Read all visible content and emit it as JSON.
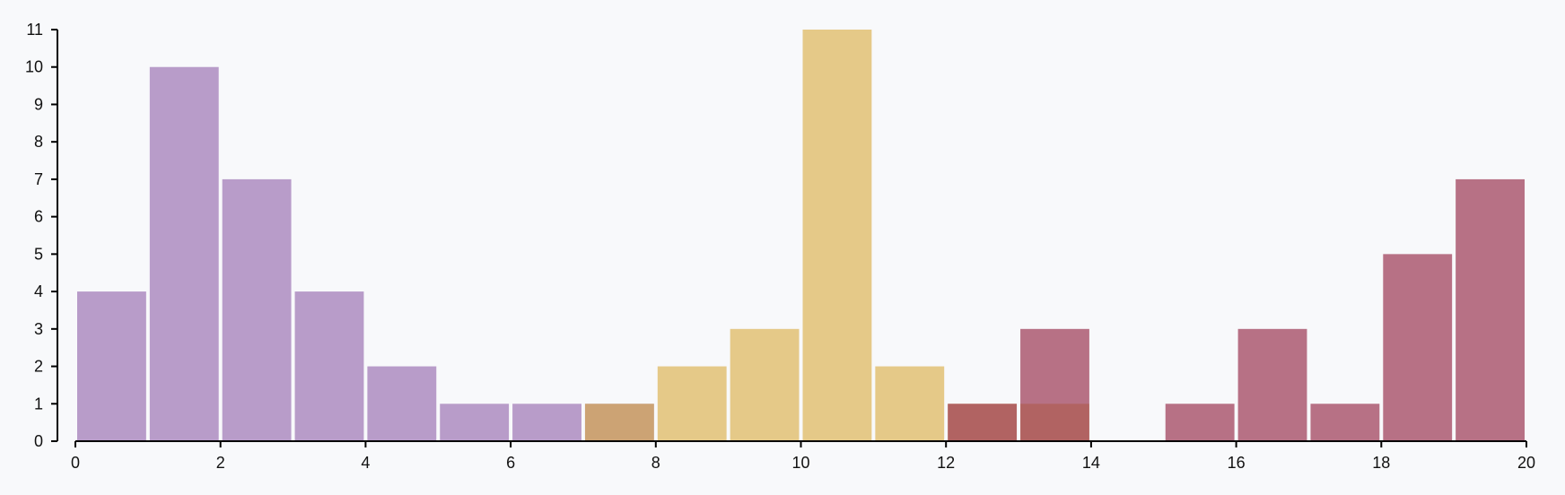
{
  "chart_data": {
    "type": "bar",
    "title": "",
    "xlabel": "",
    "ylabel": "",
    "xlim": [
      0,
      20
    ],
    "ylim": [
      0,
      11
    ],
    "x_ticks": [
      "0",
      "2",
      "4",
      "6",
      "8",
      "10",
      "12",
      "14",
      "16",
      "18",
      "20"
    ],
    "y_ticks": [
      "0",
      "1",
      "2",
      "3",
      "4",
      "5",
      "6",
      "7",
      "8",
      "9",
      "10",
      "11"
    ],
    "bin_width": 1,
    "grid": false,
    "legend": "none",
    "series": [
      {
        "color": "#9c75b4",
        "opacity": 0.7,
        "bins": [
          [
            0,
            4
          ],
          [
            1,
            10
          ],
          [
            2,
            7
          ],
          [
            3,
            4
          ],
          [
            4,
            2
          ],
          [
            5,
            1
          ],
          [
            6,
            1
          ],
          [
            7,
            1
          ]
        ]
      },
      {
        "color": "#d9a93c",
        "opacity": 0.6,
        "bins": [
          [
            7,
            1
          ],
          [
            8,
            2
          ],
          [
            9,
            3
          ],
          [
            10,
            11
          ],
          [
            11,
            2
          ],
          [
            12,
            1
          ],
          [
            13,
            1
          ]
        ]
      },
      {
        "color": "#9b3753",
        "opacity": 0.7,
        "bins": [
          [
            12,
            1
          ],
          [
            13,
            3
          ],
          [
            15,
            1
          ],
          [
            16,
            3
          ],
          [
            17,
            1
          ],
          [
            18,
            5
          ],
          [
            19,
            7
          ]
        ]
      }
    ]
  }
}
